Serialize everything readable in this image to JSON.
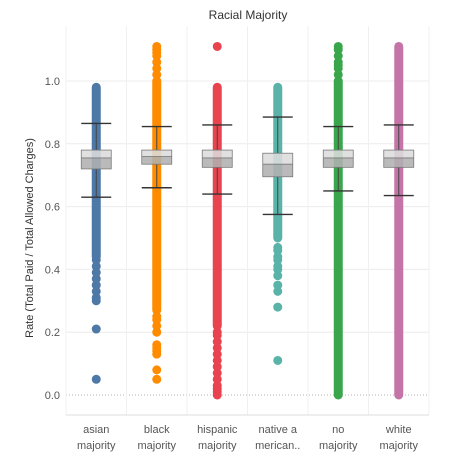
{
  "chart_data": {
    "type": "boxplot",
    "title": "Racial Majority",
    "ylabel": "Rate (Total Paid / Total Allowed Charges)",
    "xlabel": "",
    "ylim": [
      -0.06,
      1.18
    ],
    "yticks": [
      "0.0",
      "0.2",
      "0.4",
      "0.6",
      "0.8",
      "1.0"
    ],
    "grid": true,
    "categories": [
      {
        "label_line1": "asian",
        "label_line2": "majority",
        "color": "#4e79a7",
        "lower_whisker": 0.63,
        "q1": 0.72,
        "median": 0.755,
        "q3": 0.78,
        "upper_whisker": 0.865,
        "dense_range": [
          0.44,
          0.98
        ],
        "outliers": [
          0.05,
          0.21,
          0.3,
          0.31,
          0.33,
          0.35,
          0.37,
          0.39,
          0.41,
          0.43
        ]
      },
      {
        "label_line1": "black",
        "label_line2": "majority",
        "color": "#ff8c00",
        "lower_whisker": 0.66,
        "q1": 0.735,
        "median": 0.76,
        "q3": 0.78,
        "upper_whisker": 0.855,
        "dense_range": [
          0.27,
          1.0
        ],
        "outliers": [
          0.05,
          0.08,
          0.13,
          0.14,
          0.15,
          0.16,
          0.2,
          0.22,
          0.24,
          0.25,
          1.02,
          1.04,
          1.06,
          1.08,
          1.09,
          1.1,
          1.11
        ]
      },
      {
        "label_line1": "hispanic",
        "label_line2": "majority",
        "color": "#e8434f",
        "lower_whisker": 0.64,
        "q1": 0.725,
        "median": 0.755,
        "q3": 0.78,
        "upper_whisker": 0.86,
        "dense_range": [
          0.22,
          0.98
        ],
        "outliers": [
          0.0,
          0.01,
          0.02,
          0.03,
          0.05,
          0.07,
          0.09,
          0.11,
          0.13,
          0.15,
          0.17,
          0.19,
          0.2,
          1.11
        ]
      },
      {
        "label_line1": "native a",
        "label_line2": "merican..",
        "color": "#59b3a8",
        "lower_whisker": 0.575,
        "q1": 0.695,
        "median": 0.735,
        "q3": 0.77,
        "upper_whisker": 0.885,
        "dense_range": [
          0.5,
          0.98
        ],
        "outliers": [
          0.11,
          0.28,
          0.33,
          0.35,
          0.38,
          0.4,
          0.41,
          0.43,
          0.44,
          0.46,
          0.47
        ]
      },
      {
        "label_line1": "no",
        "label_line2": "majority",
        "color": "#3aa64c",
        "lower_whisker": 0.65,
        "q1": 0.725,
        "median": 0.755,
        "q3": 0.78,
        "upper_whisker": 0.855,
        "dense_range": [
          0.0,
          1.0
        ],
        "outliers": [
          1.02,
          1.04,
          1.05,
          1.06,
          1.08,
          1.1,
          1.11
        ]
      },
      {
        "label_line1": "white",
        "label_line2": "majority",
        "color": "#c574a8",
        "lower_whisker": 0.635,
        "q1": 0.725,
        "median": 0.755,
        "q3": 0.78,
        "upper_whisker": 0.86,
        "dense_range": [
          0.0,
          1.11
        ],
        "outliers": []
      }
    ]
  }
}
